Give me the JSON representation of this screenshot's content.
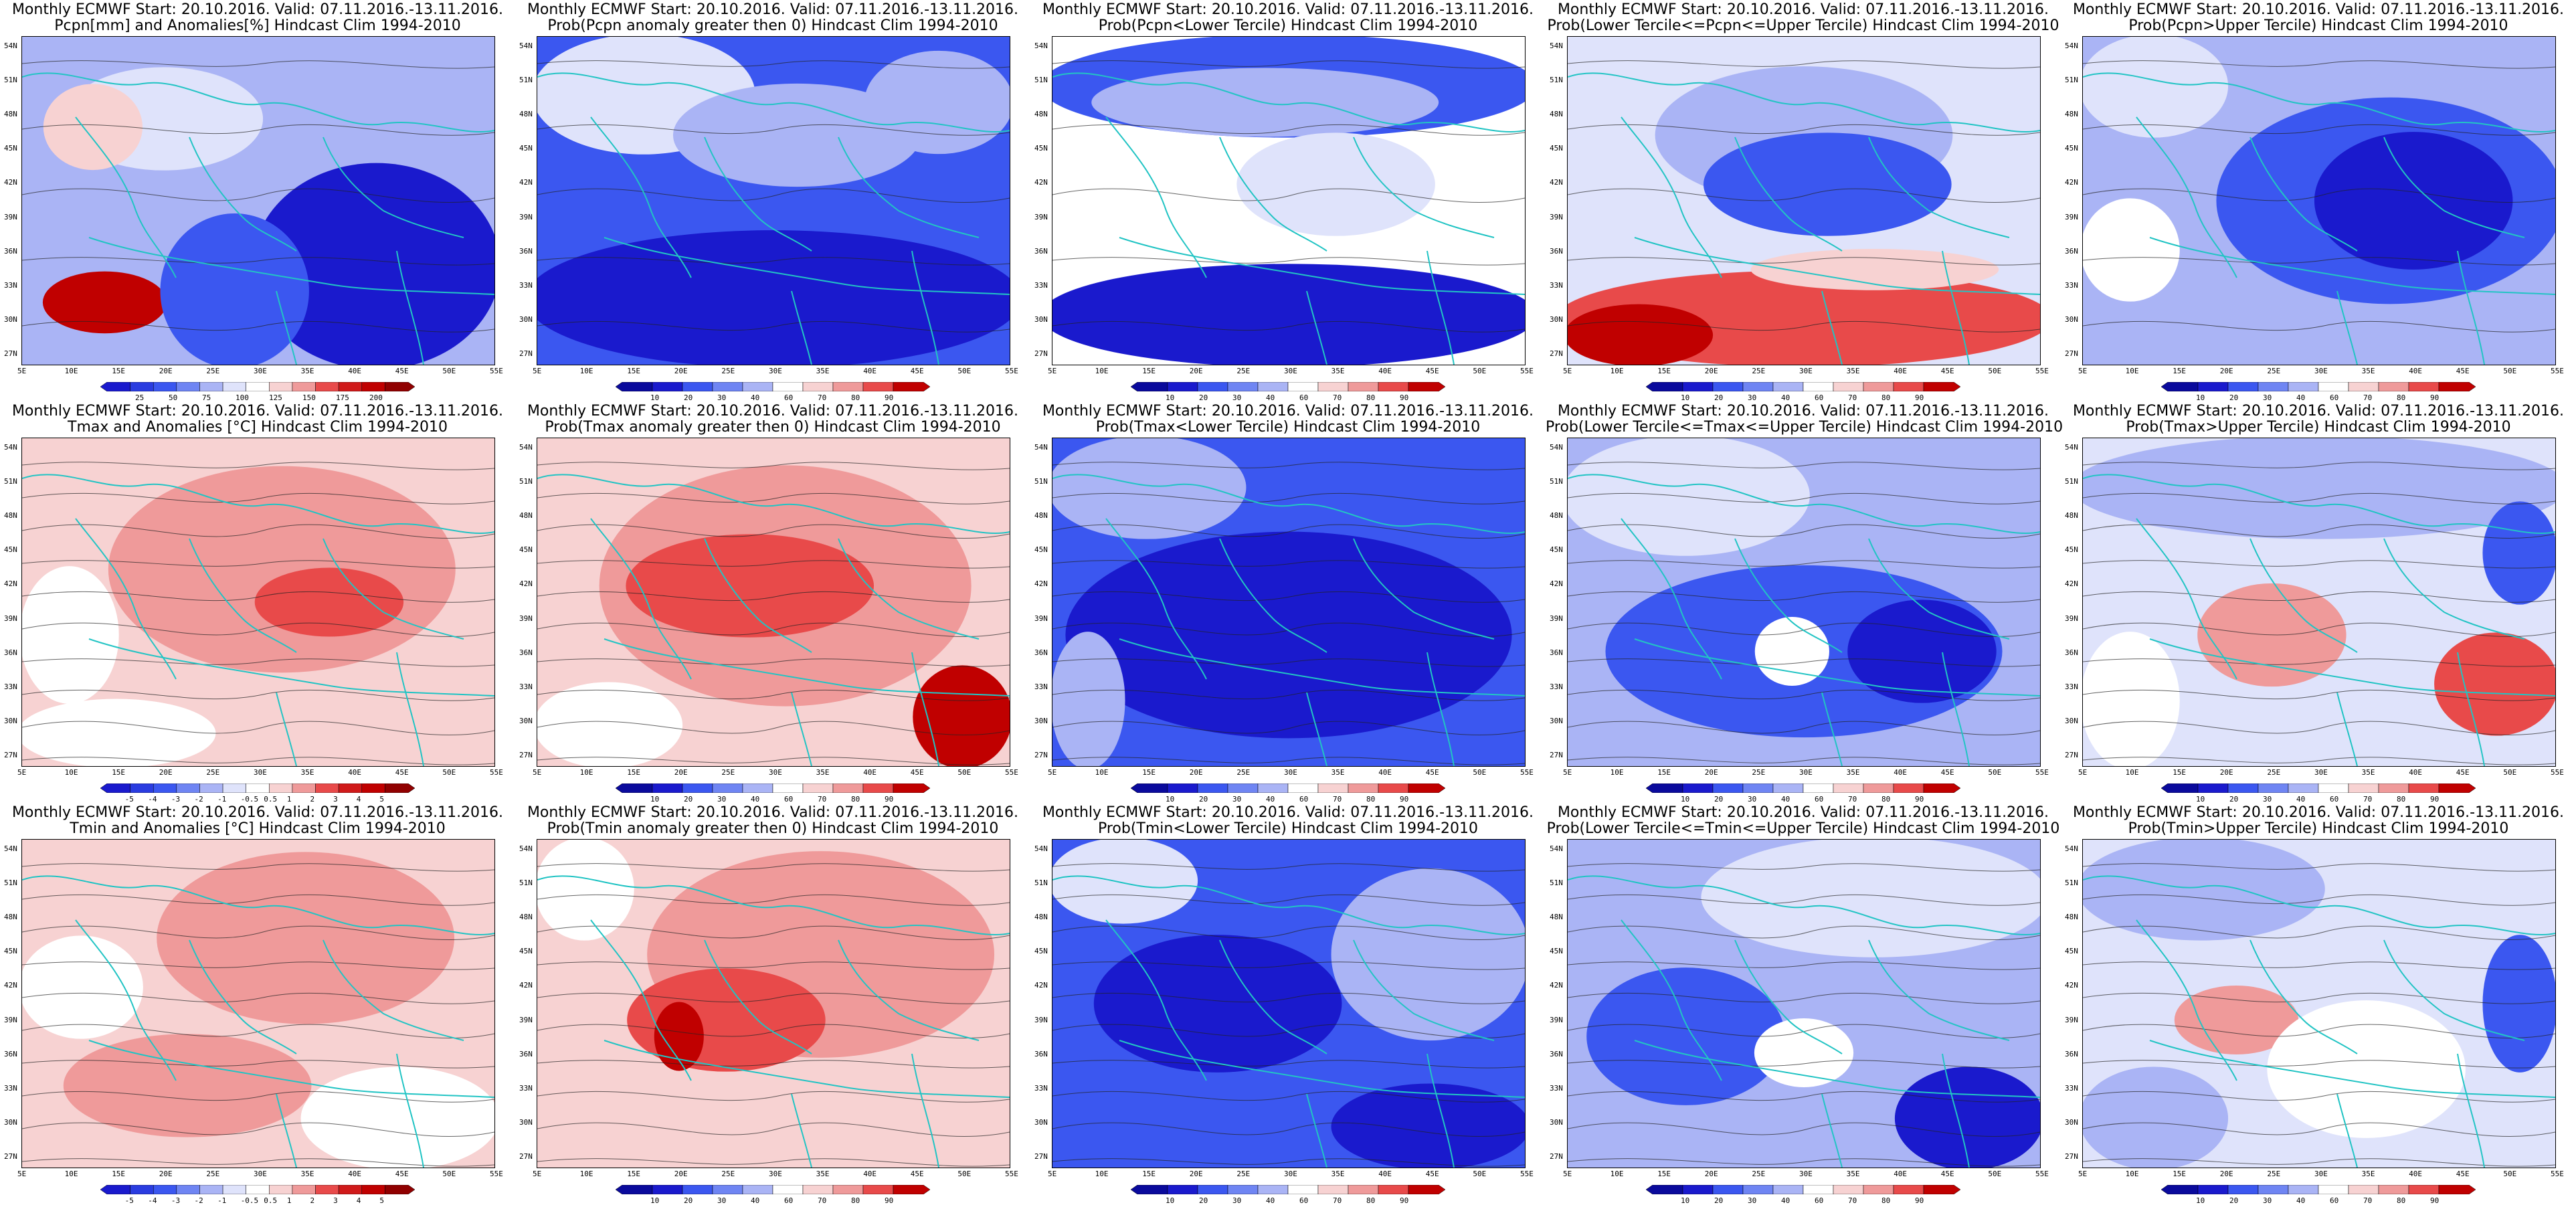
{
  "panels": [
    {
      "title_line1": "Monthly ECMWF Start: 20.10.2016. Valid: 07.11.2016.-13.11.2016.",
      "title_line2": "Pcpn[mm] and Anomalies[%] Hindcast Clim 1994-2010",
      "colorbar_labels": [
        "25",
        "50",
        "75",
        "100",
        "125",
        "150",
        "175",
        "200"
      ],
      "scheme": "anom"
    },
    {
      "title_line1": "Monthly ECMWF Start: 20.10.2016. Valid: 07.11.2016.-13.11.2016.",
      "title_line2": "Prob(Pcpn anomaly greater then 0) Hindcast Clim 1994-2010",
      "colorbar_labels": [
        "10",
        "20",
        "30",
        "40",
        "60",
        "70",
        "80",
        "90"
      ],
      "scheme": "prob"
    },
    {
      "title_line1": "Monthly ECMWF Start: 20.10.2016. Valid: 07.11.2016.-13.11.2016.",
      "title_line2": "Prob(Pcpn<Lower Tercile) Hindcast Clim 1994-2010",
      "colorbar_labels": [
        "10",
        "20",
        "30",
        "40",
        "60",
        "70",
        "80",
        "90"
      ],
      "scheme": "prob"
    },
    {
      "title_line1": "Monthly ECMWF Start: 20.10.2016. Valid: 07.11.2016.-13.11.2016.",
      "title_line2": "Prob(Lower Tercile<=Pcpn<=Upper Tercile) Hindcast Clim 1994-2010",
      "colorbar_labels": [
        "10",
        "20",
        "30",
        "40",
        "60",
        "70",
        "80",
        "90"
      ],
      "scheme": "prob"
    },
    {
      "title_line1": "Monthly ECMWF Start: 20.10.2016. Valid: 07.11.2016.-13.11.2016.",
      "title_line2": "Prob(Pcpn>Upper Tercile) Hindcast Clim 1994-2010",
      "colorbar_labels": [
        "10",
        "20",
        "30",
        "40",
        "60",
        "70",
        "80",
        "90"
      ],
      "scheme": "prob"
    },
    {
      "title_line1": "Monthly ECMWF Start: 20.10.2016. Valid: 07.11.2016.-13.11.2016.",
      "title_line2": "Tmax and Anomalies [°C] Hindcast Clim 1994-2010",
      "colorbar_labels": [
        "-5",
        "-4",
        "-3",
        "-2",
        "-1",
        "-0.5",
        "0.5",
        "1",
        "2",
        "3",
        "4",
        "5"
      ],
      "scheme": "anom"
    },
    {
      "title_line1": "Monthly ECMWF Start: 20.10.2016. Valid: 07.11.2016.-13.11.2016.",
      "title_line2": "Prob(Tmax anomaly greater then 0) Hindcast Clim 1994-2010",
      "colorbar_labels": [
        "10",
        "20",
        "30",
        "40",
        "60",
        "70",
        "80",
        "90"
      ],
      "scheme": "prob"
    },
    {
      "title_line1": "Monthly ECMWF Start: 20.10.2016. Valid: 07.11.2016.-13.11.2016.",
      "title_line2": "Prob(Tmax<Lower Tercile) Hindcast Clim 1994-2010",
      "colorbar_labels": [
        "10",
        "20",
        "30",
        "40",
        "60",
        "70",
        "80",
        "90"
      ],
      "scheme": "prob"
    },
    {
      "title_line1": "Monthly ECMWF Start: 20.10.2016. Valid: 07.11.2016.-13.11.2016.",
      "title_line2": "Prob(Lower Tercile<=Tmax<=Upper Tercile) Hindcast Clim 1994-2010",
      "colorbar_labels": [
        "10",
        "20",
        "30",
        "40",
        "60",
        "70",
        "80",
        "90"
      ],
      "scheme": "prob"
    },
    {
      "title_line1": "Monthly ECMWF Start: 20.10.2016. Valid: 07.11.2016.-13.11.2016.",
      "title_line2": "Prob(Tmax>Upper Tercile) Hindcast Clim 1994-2010",
      "colorbar_labels": [
        "10",
        "20",
        "30",
        "40",
        "60",
        "70",
        "80",
        "90"
      ],
      "scheme": "prob"
    },
    {
      "title_line1": "Monthly ECMWF Start: 20.10.2016. Valid: 07.11.2016.-13.11.2016.",
      "title_line2": "Tmin and Anomalies [°C] Hindcast Clim 1994-2010",
      "colorbar_labels": [
        "-5",
        "-4",
        "-3",
        "-2",
        "-1",
        "-0.5",
        "0.5",
        "1",
        "2",
        "3",
        "4",
        "5"
      ],
      "scheme": "anom"
    },
    {
      "title_line1": "Monthly ECMWF Start: 20.10.2016. Valid: 07.11.2016.-13.11.2016.",
      "title_line2": "Prob(Tmin anomaly greater then 0) Hindcast Clim 1994-2010",
      "colorbar_labels": [
        "10",
        "20",
        "30",
        "40",
        "60",
        "70",
        "80",
        "90"
      ],
      "scheme": "prob"
    },
    {
      "title_line1": "Monthly ECMWF Start: 20.10.2016. Valid: 07.11.2016.-13.11.2016.",
      "title_line2": "Prob(Tmin<Lower Tercile) Hindcast Clim 1994-2010",
      "colorbar_labels": [
        "10",
        "20",
        "30",
        "40",
        "60",
        "70",
        "80",
        "90"
      ],
      "scheme": "prob"
    },
    {
      "title_line1": "Monthly ECMWF Start: 20.10.2016. Valid: 07.11.2016.-13.11.2016.",
      "title_line2": "Prob(Lower Tercile<=Tmin<=Upper Tercile) Hindcast Clim 1994-2010",
      "colorbar_labels": [
        "10",
        "20",
        "30",
        "40",
        "60",
        "70",
        "80",
        "90"
      ],
      "scheme": "prob"
    },
    {
      "title_line1": "Monthly ECMWF Start: 20.10.2016. Valid: 07.11.2016.-13.11.2016.",
      "title_line2": "Prob(Tmin>Upper Tercile) Hindcast Clim 1994-2010",
      "colorbar_labels": [
        "10",
        "20",
        "30",
        "40",
        "60",
        "70",
        "80",
        "90"
      ],
      "scheme": "prob"
    }
  ],
  "lat_labels": [
    "54N",
    "51N",
    "48N",
    "45N",
    "42N",
    "39N",
    "36N",
    "33N",
    "30N",
    "27N"
  ],
  "lon_labels": [
    "5E",
    "10E",
    "15E",
    "20E",
    "25E",
    "30E",
    "35E",
    "40E",
    "45E",
    "50E",
    "55E"
  ],
  "colors": {
    "deep_blue": "#1a1acd",
    "mid_blue": "#3b57f0",
    "light_blue": "#aab4f5",
    "pale_blue": "#dfe3fb",
    "white": "#ffffff",
    "pale_red": "#f7d2d2",
    "light_red": "#ef9a9a",
    "mid_red": "#e84a4a",
    "deep_red": "#c00000",
    "coast": "#22c4c4"
  },
  "panel_fields": [
    {
      "base": "#aab4f5",
      "patches": [
        [
          "#dfe3fb",
          0.1,
          0.1,
          0.4,
          0.3
        ],
        [
          "#f7d2d2",
          0.05,
          0.15,
          0.2,
          0.25
        ],
        [
          "#1a1acd",
          0.5,
          0.4,
          0.5,
          0.6
        ],
        [
          "#c00000",
          0.05,
          0.72,
          0.25,
          0.18
        ],
        [
          "#3b57f0",
          0.3,
          0.55,
          0.3,
          0.45
        ]
      ]
    },
    {
      "base": "#3b57f0",
      "patches": [
        [
          "#dfe3fb",
          0.0,
          0.0,
          0.45,
          0.35
        ],
        [
          "#aab4f5",
          0.3,
          0.15,
          0.5,
          0.3
        ],
        [
          "#1a1acd",
          0.0,
          0.6,
          1.0,
          0.4
        ],
        [
          "#aab4f5",
          0.7,
          0.05,
          0.3,
          0.3
        ]
      ]
    },
    {
      "base": "#ffffff",
      "patches": [
        [
          "#3b57f0",
          0.0,
          0.0,
          1.0,
          0.3
        ],
        [
          "#aab4f5",
          0.1,
          0.1,
          0.7,
          0.2
        ],
        [
          "#1a1acd",
          0.0,
          0.7,
          1.0,
          0.3
        ],
        [
          "#dfe3fb",
          0.4,
          0.3,
          0.4,
          0.3
        ]
      ]
    },
    {
      "base": "#dfe3fb",
      "patches": [
        [
          "#aab4f5",
          0.2,
          0.1,
          0.6,
          0.4
        ],
        [
          "#3b57f0",
          0.3,
          0.3,
          0.5,
          0.3
        ],
        [
          "#e84a4a",
          0.0,
          0.72,
          1.0,
          0.28
        ],
        [
          "#c00000",
          0.0,
          0.82,
          0.3,
          0.18
        ],
        [
          "#f7d2d2",
          0.4,
          0.65,
          0.5,
          0.12
        ]
      ]
    },
    {
      "base": "#aab4f5",
      "patches": [
        [
          "#dfe3fb",
          0.0,
          0.0,
          0.3,
          0.3
        ],
        [
          "#3b57f0",
          0.3,
          0.2,
          0.7,
          0.6
        ],
        [
          "#1a1acd",
          0.5,
          0.3,
          0.4,
          0.4
        ],
        [
          "#ffffff",
          0.0,
          0.5,
          0.2,
          0.3
        ]
      ]
    },
    {
      "base": "#f7d2d2",
      "patches": [
        [
          "#ef9a9a",
          0.2,
          0.1,
          0.7,
          0.6
        ],
        [
          "#ffffff",
          0.0,
          0.4,
          0.2,
          0.4
        ],
        [
          "#e84a4a",
          0.5,
          0.4,
          0.3,
          0.2
        ],
        [
          "#ffffff",
          0.0,
          0.8,
          0.4,
          0.2
        ]
      ]
    },
    {
      "base": "#f7d2d2",
      "patches": [
        [
          "#ef9a9a",
          0.15,
          0.1,
          0.75,
          0.7
        ],
        [
          "#e84a4a",
          0.2,
          0.3,
          0.5,
          0.3
        ],
        [
          "#c00000",
          0.8,
          0.7,
          0.2,
          0.3
        ],
        [
          "#ffffff",
          0.0,
          0.75,
          0.3,
          0.25
        ]
      ]
    },
    {
      "base": "#3b57f0",
      "patches": [
        [
          "#1a1acd",
          0.05,
          0.3,
          0.9,
          0.6
        ],
        [
          "#aab4f5",
          0.0,
          0.0,
          0.4,
          0.3
        ],
        [
          "#aab4f5",
          0.0,
          0.6,
          0.15,
          0.4
        ]
      ]
    },
    {
      "base": "#aab4f5",
      "patches": [
        [
          "#3b57f0",
          0.1,
          0.4,
          0.8,
          0.5
        ],
        [
          "#dfe3fb",
          0.0,
          0.0,
          0.5,
          0.35
        ],
        [
          "#1a1acd",
          0.6,
          0.5,
          0.3,
          0.3
        ],
        [
          "#ffffff",
          0.4,
          0.55,
          0.15,
          0.2
        ]
      ]
    },
    {
      "base": "#dfe3fb",
      "patches": [
        [
          "#aab4f5",
          0.0,
          0.0,
          1.0,
          0.3
        ],
        [
          "#ef9a9a",
          0.25,
          0.45,
          0.3,
          0.3
        ],
        [
          "#e84a4a",
          0.75,
          0.6,
          0.25,
          0.3
        ],
        [
          "#3b57f0",
          0.85,
          0.2,
          0.15,
          0.3
        ],
        [
          "#ffffff",
          0.0,
          0.6,
          0.2,
          0.4
        ]
      ]
    },
    {
      "base": "#f7d2d2",
      "patches": [
        [
          "#ef9a9a",
          0.3,
          0.05,
          0.6,
          0.5
        ],
        [
          "#ffffff",
          0.0,
          0.3,
          0.25,
          0.3
        ],
        [
          "#ef9a9a",
          0.1,
          0.6,
          0.5,
          0.3
        ],
        [
          "#ffffff",
          0.6,
          0.7,
          0.4,
          0.3
        ]
      ]
    },
    {
      "base": "#f7d2d2",
      "patches": [
        [
          "#ef9a9a",
          0.25,
          0.05,
          0.7,
          0.6
        ],
        [
          "#e84a4a",
          0.2,
          0.4,
          0.4,
          0.3
        ],
        [
          "#c00000",
          0.25,
          0.5,
          0.1,
          0.2
        ],
        [
          "#ffffff",
          0.0,
          0.0,
          0.2,
          0.3
        ]
      ]
    },
    {
      "base": "#3b57f0",
      "patches": [
        [
          "#1a1acd",
          0.1,
          0.3,
          0.5,
          0.4
        ],
        [
          "#aab4f5",
          0.6,
          0.1,
          0.4,
          0.5
        ],
        [
          "#dfe3fb",
          0.0,
          0.0,
          0.3,
          0.25
        ],
        [
          "#1a1acd",
          0.6,
          0.75,
          0.4,
          0.25
        ]
      ]
    },
    {
      "base": "#aab4f5",
      "patches": [
        [
          "#dfe3fb",
          0.3,
          0.0,
          0.7,
          0.35
        ],
        [
          "#3b57f0",
          0.05,
          0.4,
          0.4,
          0.4
        ],
        [
          "#1a1acd",
          0.7,
          0.7,
          0.3,
          0.3
        ],
        [
          "#ffffff",
          0.4,
          0.55,
          0.2,
          0.2
        ]
      ]
    },
    {
      "base": "#dfe3fb",
      "patches": [
        [
          "#aab4f5",
          0.0,
          0.0,
          0.5,
          0.3
        ],
        [
          "#ef9a9a",
          0.2,
          0.45,
          0.25,
          0.2
        ],
        [
          "#3b57f0",
          0.85,
          0.3,
          0.15,
          0.4
        ],
        [
          "#ffffff",
          0.4,
          0.5,
          0.4,
          0.4
        ],
        [
          "#aab4f5",
          0.0,
          0.7,
          0.3,
          0.3
        ]
      ]
    }
  ],
  "colorbar_colors": {
    "anom": [
      "#1a1acd",
      "#2a3ce0",
      "#3b57f0",
      "#6f85f3",
      "#aab4f5",
      "#dfe3fb",
      "#ffffff",
      "#f7d2d2",
      "#ef9a9a",
      "#e84a4a",
      "#d01a1a",
      "#c00000",
      "#900000"
    ],
    "prob": [
      "#0a0a9c",
      "#1a1acd",
      "#3b57f0",
      "#6f85f3",
      "#aab4f5",
      "#ffffff",
      "#f7d2d2",
      "#ef9a9a",
      "#e84a4a",
      "#c00000"
    ]
  }
}
